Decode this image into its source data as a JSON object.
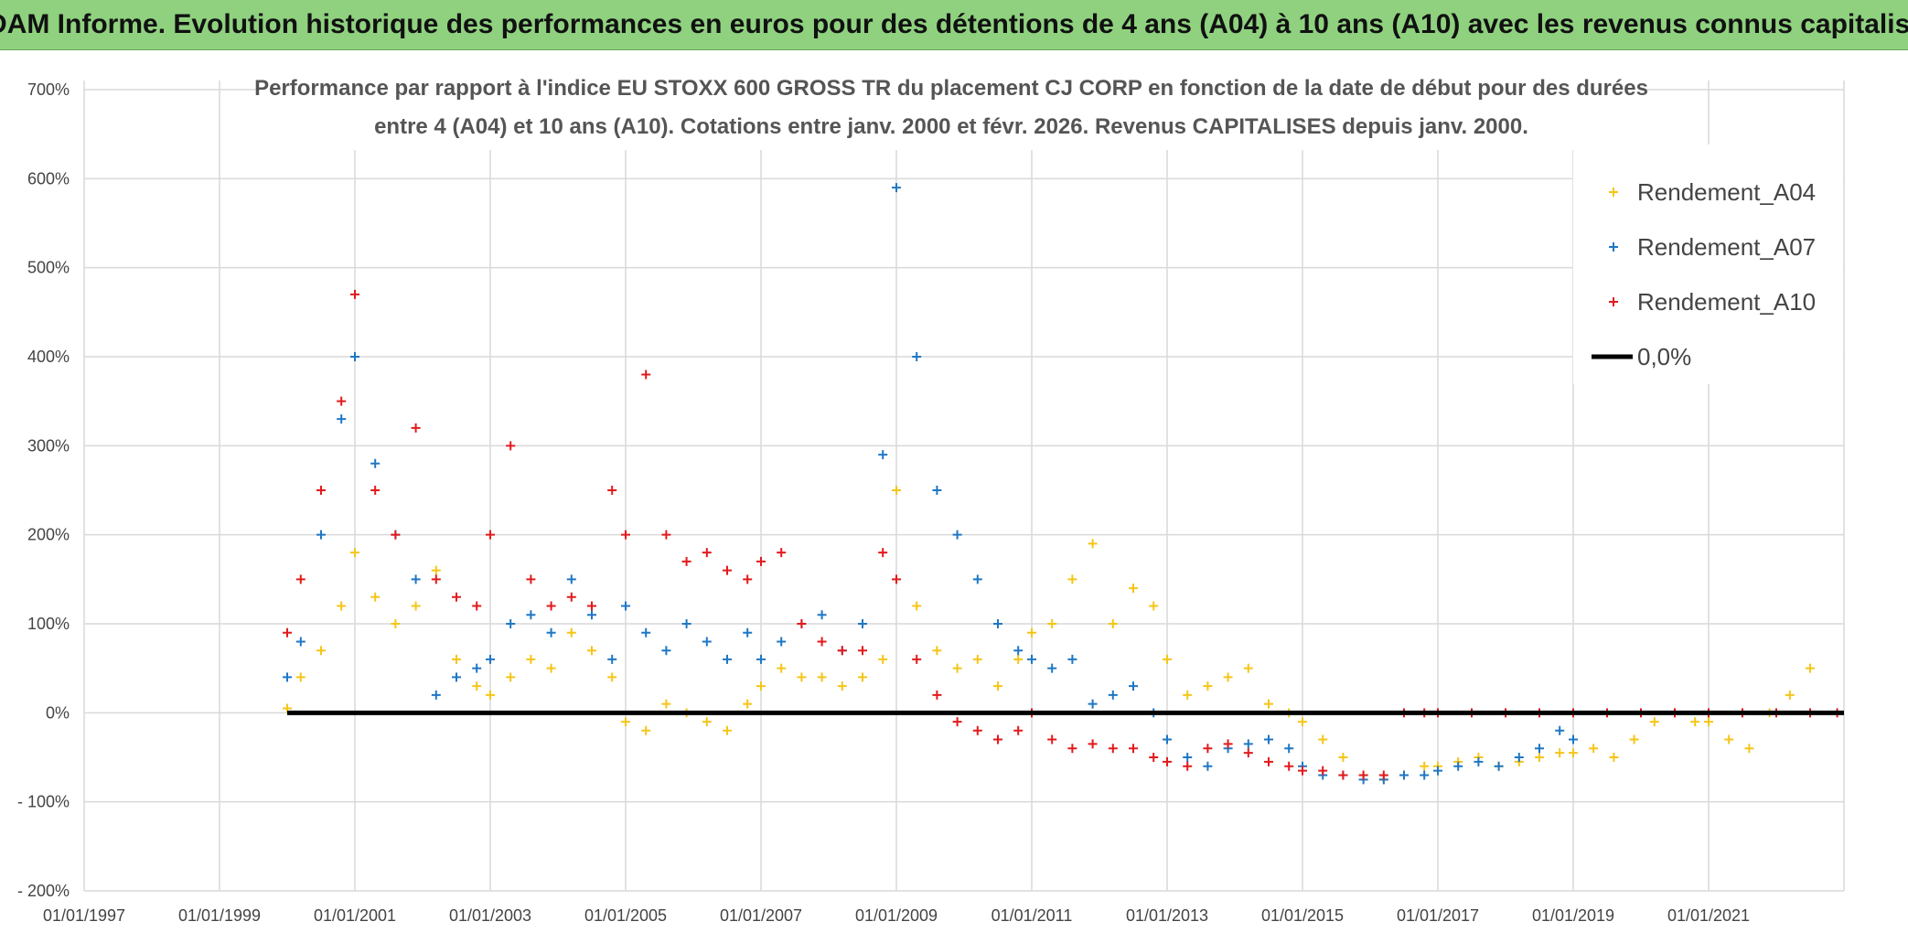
{
  "header": {
    "title": "ADAM Informe. Evolution historique des performances en euros pour des détentions de 4 ans (A04) à 10 ans (A10) avec les revenus connus capitalisés"
  },
  "chart_data": {
    "type": "scatter",
    "title": "",
    "subtitle_lines": [
      "Performance par rapport à l'indice EU STOXX 600 GROSS TR  du placement CJ CORP en fonction de la date de début pour des durées",
      "entre 4 (A04) et 10 ans (A10). Cotations entre janv. 2000 et févr. 2026. Revenus CAPITALISES depuis janv. 2000."
    ],
    "xlabel": "",
    "ylabel": "",
    "xlim": [
      1997.0,
      2023.0
    ],
    "ylim": [
      -200,
      700
    ],
    "x_tick_values": [
      1997,
      1999,
      2001,
      2003,
      2005,
      2007,
      2009,
      2011,
      2013,
      2015,
      2017,
      2019,
      2021
    ],
    "x_tick_labels": [
      "01/01/1997",
      "01/01/1999",
      "01/01/2001",
      "01/01/2003",
      "01/01/2005",
      "01/01/2007",
      "01/01/2009",
      "01/01/2011",
      "01/01/2013",
      "01/01/2015",
      "01/01/2017",
      "01/01/2019",
      "01/01/2021"
    ],
    "y_tick_values": [
      700,
      600,
      500,
      400,
      300,
      200,
      100,
      0,
      -100,
      -200
    ],
    "y_tick_labels": [
      "700%",
      "600%",
      "500%",
      "400%",
      "300%",
      "200%",
      "100%",
      "0%",
      "- 100%",
      "- 200%"
    ],
    "grid": true,
    "legend_position": "top-right",
    "series": [
      {
        "name": "Rendement_A04",
        "color": "#f5c518",
        "marker": "plus",
        "x": [
          2000.0,
          2000.2,
          2000.5,
          2000.8,
          2001.0,
          2001.3,
          2001.6,
          2001.9,
          2002.2,
          2002.5,
          2002.8,
          2003.0,
          2003.3,
          2003.6,
          2003.9,
          2004.2,
          2004.5,
          2004.8,
          2005.0,
          2005.3,
          2005.6,
          2005.9,
          2006.2,
          2006.5,
          2006.8,
          2007.0,
          2007.3,
          2007.6,
          2007.9,
          2008.2,
          2008.5,
          2008.8,
          2009.0,
          2009.3,
          2009.6,
          2009.9,
          2010.2,
          2010.5,
          2010.8,
          2011.0,
          2011.3,
          2011.6,
          2011.9,
          2012.2,
          2012.5,
          2012.8,
          2013.0,
          2013.3,
          2013.6,
          2013.9,
          2014.2,
          2014.5,
          2014.8,
          2015.0,
          2015.3,
          2015.6,
          2015.9,
          2016.2,
          2016.5,
          2016.8,
          2017.0,
          2017.3,
          2017.6,
          2017.9,
          2018.2,
          2018.5,
          2018.8,
          2019.0,
          2019.3,
          2019.6,
          2019.9,
          2020.2,
          2020.5,
          2020.8,
          2021.0,
          2021.3,
          2021.6,
          2021.9,
          2022.2,
          2022.5
        ],
        "y": [
          5,
          40,
          70,
          120,
          180,
          130,
          100,
          120,
          160,
          60,
          30,
          20,
          40,
          60,
          50,
          90,
          70,
          40,
          -10,
          -20,
          10,
          0,
          -10,
          -20,
          10,
          30,
          50,
          40,
          40,
          30,
          40,
          60,
          250,
          120,
          70,
          50,
          60,
          30,
          60,
          90,
          100,
          150,
          190,
          100,
          140,
          120,
          60,
          20,
          30,
          40,
          50,
          10,
          0,
          -10,
          -30,
          -50,
          -70,
          -75,
          -70,
          -60,
          -60,
          -55,
          -50,
          -60,
          -55,
          -50,
          -45,
          -45,
          -40,
          -50,
          -30,
          -10,
          0,
          -10,
          -10,
          -30,
          -40,
          0,
          20,
          50
        ]
      },
      {
        "name": "Rendement_A07",
        "color": "#1f77c4",
        "marker": "plus",
        "x": [
          2000.0,
          2000.2,
          2000.5,
          2000.8,
          2001.0,
          2001.3,
          2001.6,
          2001.9,
          2002.2,
          2002.5,
          2002.8,
          2003.0,
          2003.3,
          2003.6,
          2003.9,
          2004.2,
          2004.5,
          2004.8,
          2005.0,
          2005.3,
          2005.6,
          2005.9,
          2006.2,
          2006.5,
          2006.8,
          2007.0,
          2007.3,
          2007.6,
          2007.9,
          2008.2,
          2008.5,
          2008.8,
          2009.0,
          2009.3,
          2009.6,
          2009.9,
          2010.2,
          2010.5,
          2010.8,
          2011.0,
          2011.3,
          2011.6,
          2011.9,
          2012.2,
          2012.5,
          2012.8,
          2013.0,
          2013.3,
          2013.6,
          2013.9,
          2014.2,
          2014.5,
          2014.8,
          2015.0,
          2015.3,
          2015.6,
          2015.9,
          2016.2,
          2016.5,
          2016.8,
          2017.0,
          2017.3,
          2017.6,
          2017.9,
          2018.2,
          2018.5,
          2018.8,
          2019.0
        ],
        "y": [
          40,
          80,
          200,
          330,
          400,
          280,
          200,
          150,
          20,
          40,
          50,
          60,
          100,
          110,
          90,
          150,
          110,
          60,
          120,
          90,
          70,
          100,
          80,
          60,
          90,
          60,
          80,
          100,
          110,
          70,
          100,
          290,
          590,
          400,
          250,
          200,
          150,
          100,
          70,
          60,
          50,
          60,
          10,
          20,
          30,
          0,
          -30,
          -50,
          -60,
          -40,
          -35,
          -30,
          -40,
          -60,
          -70,
          -70,
          -75,
          -75,
          -70,
          -70,
          -65,
          -60,
          -55,
          -60,
          -50,
          -40,
          -20,
          -30
        ]
      },
      {
        "name": "Rendement_A10",
        "color": "#e31a1c",
        "marker": "plus",
        "x": [
          2000.0,
          2000.2,
          2000.5,
          2000.8,
          2001.0,
          2001.3,
          2001.6,
          2001.9,
          2002.2,
          2002.5,
          2002.8,
          2003.0,
          2003.3,
          2003.6,
          2003.9,
          2004.2,
          2004.5,
          2004.8,
          2005.0,
          2005.3,
          2005.6,
          2005.9,
          2006.2,
          2006.5,
          2006.8,
          2007.0,
          2007.3,
          2007.6,
          2007.9,
          2008.2,
          2008.5,
          2008.8,
          2009.0,
          2009.3,
          2009.6,
          2009.9,
          2010.2,
          2010.5,
          2010.8,
          2011.0,
          2011.3,
          2011.6,
          2011.9,
          2012.2,
          2012.5,
          2012.8,
          2013.0,
          2013.3,
          2013.6,
          2013.9,
          2014.2,
          2014.5,
          2014.8,
          2015.0,
          2015.3,
          2015.6,
          2015.9,
          2016.2,
          2016.5,
          2016.8,
          2017.0,
          2017.5,
          2018.0,
          2018.5,
          2019.0,
          2019.5,
          2020.0,
          2020.5,
          2021.0,
          2021.5,
          2022.0,
          2022.5,
          2022.9
        ],
        "y": [
          90,
          150,
          250,
          350,
          470,
          250,
          200,
          320,
          150,
          130,
          120,
          200,
          300,
          150,
          120,
          130,
          120,
          250,
          200,
          380,
          200,
          170,
          180,
          160,
          150,
          170,
          180,
          100,
          80,
          70,
          70,
          180,
          150,
          60,
          20,
          -10,
          -20,
          -30,
          -20,
          0,
          -30,
          -40,
          -35,
          -40,
          -40,
          -50,
          -55,
          -60,
          -40,
          -35,
          -45,
          -55,
          -60,
          -65,
          -65,
          -70,
          -70,
          -70,
          0,
          0,
          0,
          0,
          0,
          0,
          0,
          0,
          0,
          0,
          0,
          0,
          0,
          0,
          0
        ]
      }
    ],
    "reference_lines": [
      {
        "name": "0,0%",
        "value": 0,
        "color": "#000000"
      }
    ]
  }
}
